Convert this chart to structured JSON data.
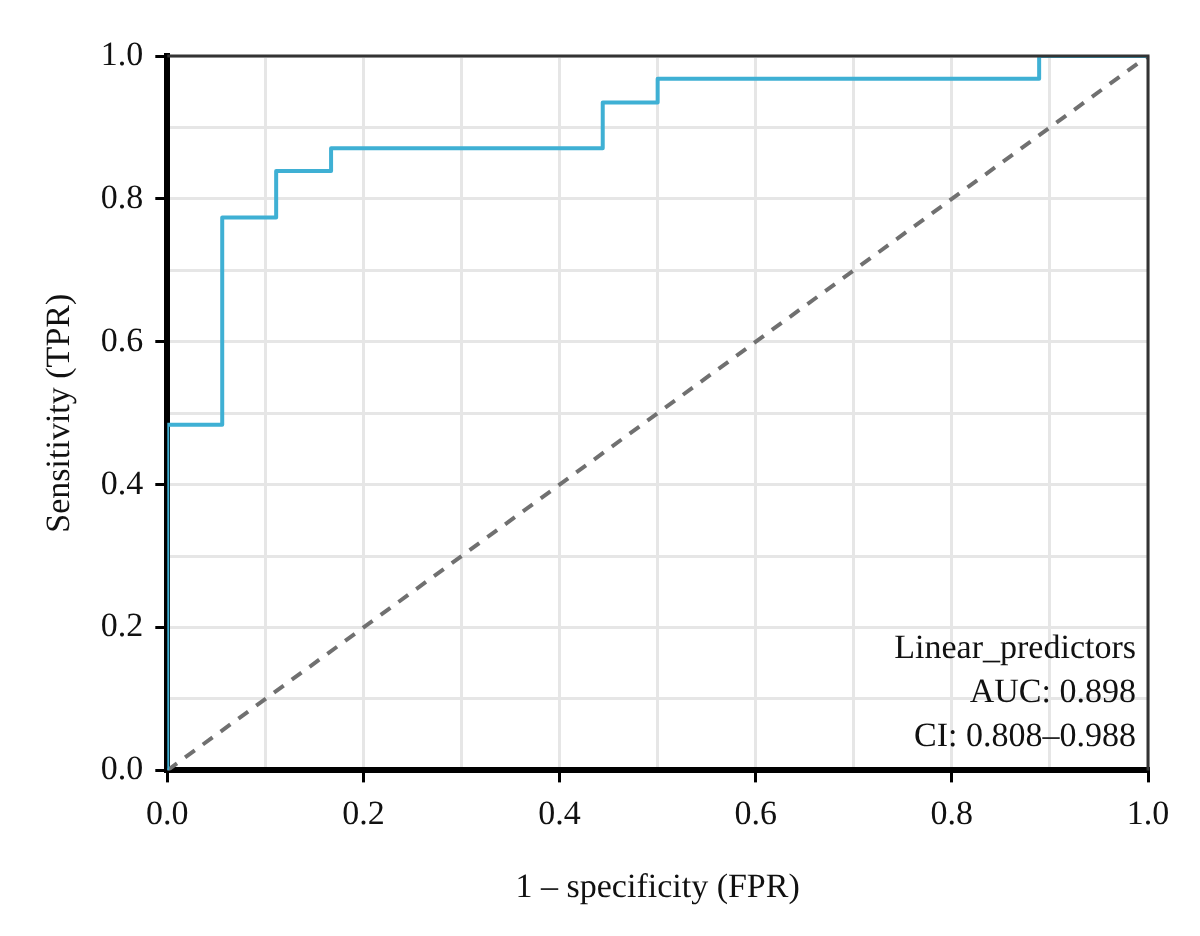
{
  "chart_data": {
    "type": "line",
    "xlabel": "1 – specificity (FPR)",
    "ylabel": "Sensitivity (TPR)",
    "series": [
      {
        "color": "#3fb0d4",
        "line_style": "solid",
        "x": [
          0,
          0,
          0.056,
          0.056,
          0.111,
          0.111,
          0.167,
          0.167,
          0.444,
          0.444,
          0.5,
          0.5,
          0.889,
          0.889,
          1
        ],
        "values": [
          0,
          0.484,
          0.484,
          0.774,
          0.774,
          0.839,
          0.839,
          0.871,
          0.871,
          0.935,
          0.935,
          0.968,
          0.968,
          1,
          1
        ]
      },
      {
        "color": "#707070",
        "line_style": "dashed",
        "x": [
          0,
          1
        ],
        "values": [
          0,
          1
        ]
      }
    ],
    "xlim": [
      0,
      1
    ],
    "ylim": [
      0,
      1
    ],
    "xticks": [
      {
        "value": 0,
        "label": "0.0"
      },
      {
        "value": 0.1,
        "label": null
      },
      0.2,
      {
        "value": 0.3,
        "label": null
      },
      0.4,
      {
        "value": 0.5,
        "label": null
      },
      0.6,
      {
        "value": 0.7,
        "label": null
      },
      0.8,
      {
        "value": 0.9,
        "label": null
      },
      {
        "value": 1,
        "label": "1.0"
      }
    ],
    "yticks": [
      {
        "value": 0,
        "label": "0.0"
      },
      {
        "value": 0.1,
        "label": null
      },
      0.2,
      {
        "value": 0.3,
        "label": null
      },
      0.4,
      {
        "value": 0.5,
        "label": null
      },
      0.6,
      {
        "value": 0.7,
        "label": null
      },
      0.8,
      {
        "value": 0.9,
        "label": null
      },
      {
        "value": 1,
        "label": "1.0"
      }
    ],
    "annotations": [
      "Linear_predictors",
      "AUC: 0.898",
      "CI: 0.808–0.988"
    ],
    "grid": true,
    "legend": false,
    "marker": "none"
  }
}
